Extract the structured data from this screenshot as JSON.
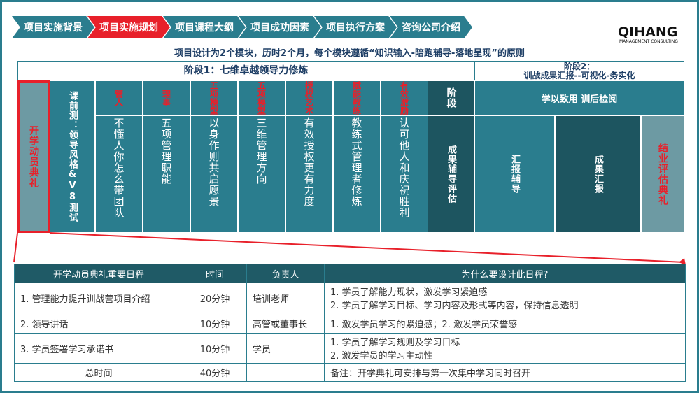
{
  "nav": {
    "tabs": [
      "项目实施背景",
      "项目实施规划",
      "项目课程大纲",
      "项目成功因素",
      "项目执行方案",
      "咨询公司介绍"
    ],
    "active": 1
  },
  "logo": {
    "name": "QIHANG",
    "tagline": "MANAGEMENT CONSULTING"
  },
  "subtitle": "项目设计为2个模块，历时2个月，每个模块遵循“知识输入-陪跑辅导-落地呈现”的原则",
  "phase1": {
    "title": "阶段1：七维卓越领导力修炼"
  },
  "phase2": {
    "title": "阶段2：",
    "subtitle": "训战成果汇报--可视化-务实化",
    "group": "学以致用 训后检阅"
  },
  "opening": "开学动员典礼",
  "pretest": "课前测：领导风格&V8测试",
  "modules": [
    {
      "tag": "管人",
      "body": "不懂人你怎么带团队"
    },
    {
      "tag": "理事",
      "body": "五项管理职能"
    },
    {
      "tag": "五项模型",
      "body": "以身作则共启愿景"
    },
    {
      "tag": "五项模型",
      "body": "三维管理方向"
    },
    {
      "tag": "授权艺术",
      "body": "有效授权更有力度"
    },
    {
      "tag": "赋能教练",
      "body": "教练式管理者修炼"
    },
    {
      "tag": "有效激励",
      "body": "认可他人和庆祝胜利"
    }
  ],
  "stage": {
    "tag": "阶段",
    "body": "成果辅导评估"
  },
  "report_coaching": "汇报辅导",
  "report": "成果汇报",
  "closing": "结业评估典礼",
  "table": {
    "headers": [
      "开学动员典礼重要日程",
      "时间",
      "负责人",
      "为什么要设计此日程?"
    ],
    "rows": [
      {
        "item": "1.  管理能力提升训战营项目介绍",
        "time": "20分钟",
        "owner": "培训老师",
        "reasons": [
          "1.  学员了解能力现状，激发学习紧迫感",
          "2.  学员了解学习目标、学习内容及形式等内容，保持信息透明"
        ]
      },
      {
        "item": "2.  领导讲话",
        "time": "10分钟",
        "owner": "高管或董事长",
        "reasons": [
          "1.  激发学员学习的紧迫感；2.  激发学员荣誉感"
        ]
      },
      {
        "item": "3.  学员签署学习承诺书",
        "time": "10分钟",
        "owner": "学员",
        "reasons": [
          "1.  学员了解学习规则及学习目标",
          "2.    激发学员的学习主动性"
        ]
      }
    ],
    "total": {
      "label": "总时间",
      "time": "40分钟",
      "note": "备注：开学典礼可安排与第一次集中学习同时召开"
    }
  }
}
